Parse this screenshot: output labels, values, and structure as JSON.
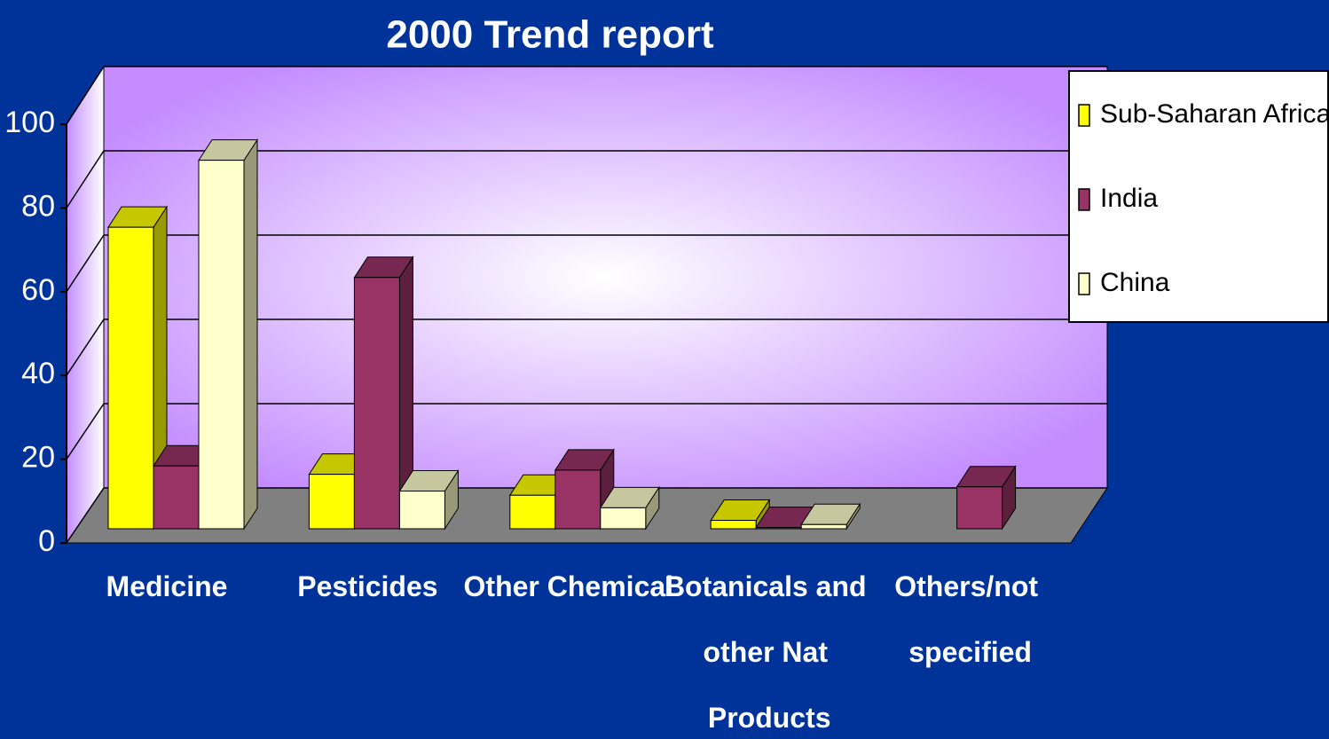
{
  "chart_data": {
    "type": "bar3d",
    "title": "2000 Trend report",
    "categories": [
      "Medicine",
      "Pesticides",
      "Other Chemical",
      "Botanicals and other Nat Products",
      "Others/not specified"
    ],
    "series": [
      {
        "name": "Sub-Saharan Africa",
        "color": "#ffff00",
        "values": [
          72,
          13,
          8,
          2,
          null
        ]
      },
      {
        "name": "India",
        "color": "#993366",
        "values": [
          15,
          60,
          14,
          0.3,
          10
        ]
      },
      {
        "name": "China",
        "color": "#ffffcc",
        "values": [
          88,
          9,
          5,
          1,
          null
        ]
      }
    ],
    "ylim": [
      0,
      100
    ],
    "yticks": [
      0,
      20,
      40,
      60,
      80,
      100
    ],
    "grid": true,
    "legend": "right"
  }
}
